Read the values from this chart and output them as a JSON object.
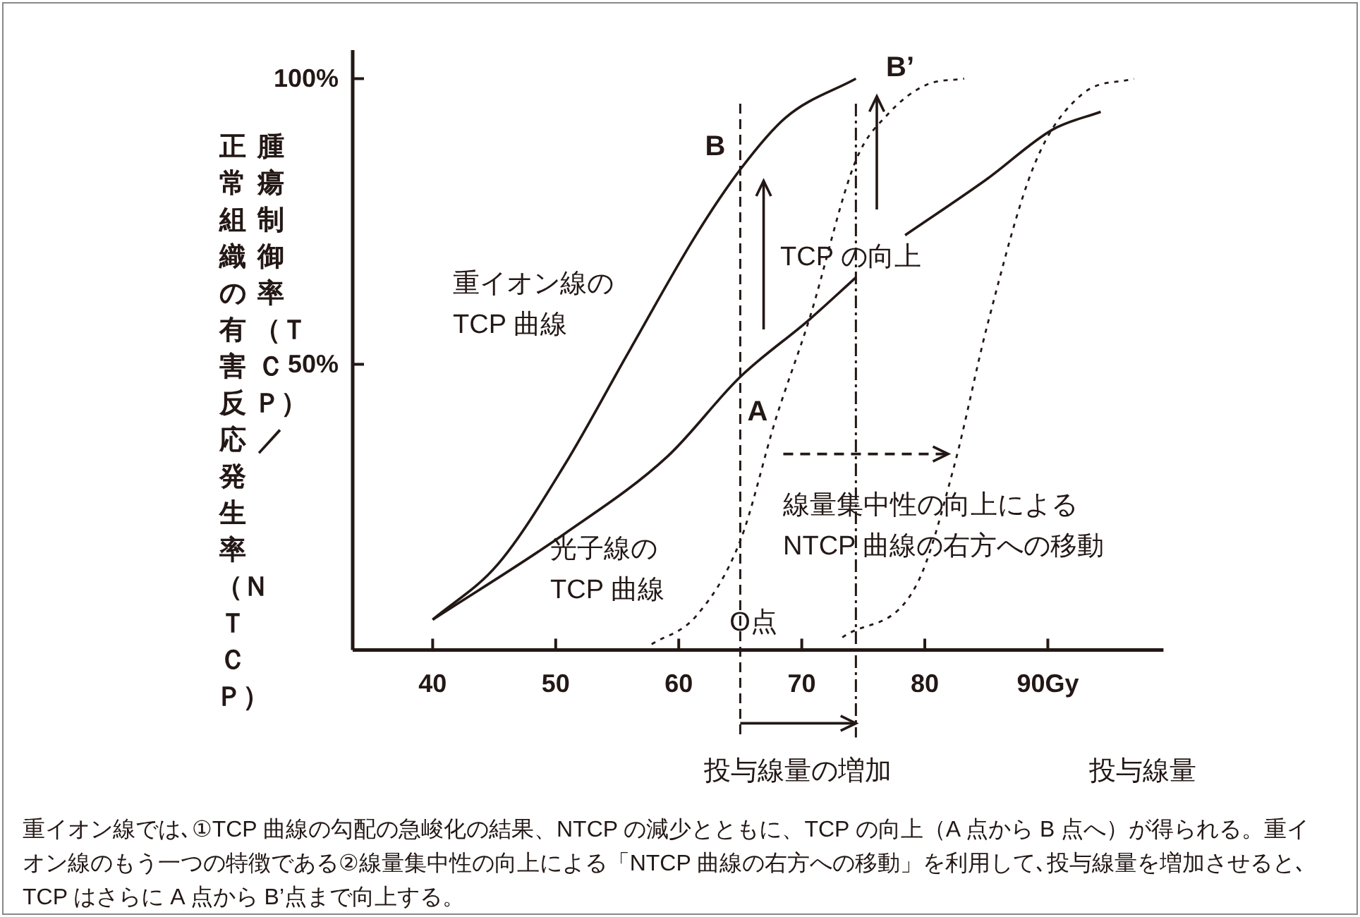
{
  "chart_data": {
    "type": "line",
    "xlabel": "投与線量",
    "ylabel": "腫瘍制御率（ＴＣＰ）／正常組織の有害反応発生率（ＮＴＣＰ）",
    "xlim": [
      33.5,
      99.4
    ],
    "ylim": [
      0,
      105
    ],
    "xticks": [
      40,
      50,
      60,
      70,
      80,
      {
        "value": 90,
        "label": "90Gy"
      }
    ],
    "yticks": [
      {
        "value": 50,
        "label": "50%"
      },
      {
        "value": 100,
        "label": "100%"
      }
    ],
    "series": [
      {
        "color": "#231815",
        "line_style": "solid",
        "x": [
          40,
          45.3,
          50.7,
          56.1,
          61.4,
          65.0,
          68.7,
          74.4
        ],
        "values": [
          5.3,
          15.0,
          32.3,
          52.8,
          72.6,
          84.1,
          93.2,
          100
        ]
      },
      {
        "color": "#231815",
        "line_style": "solid",
        "x": [
          40,
          50.7,
          59.1,
          65.0,
          70.6,
          74.4
        ],
        "values": [
          5.3,
          20.3,
          33.9,
          47.8,
          57.8,
          65.2
        ]
      },
      {
        "color": "#231815",
        "line_style": "solid",
        "x": [
          78.4,
          85.1,
          90.4,
          94.3
        ],
        "values": [
          72.6,
          82.5,
          91.1,
          94.2
        ]
      },
      {
        "color": "#231815",
        "line_style": "dotted",
        "x": [
          57.8,
          61.4,
          65.0,
          67.9,
          70.6,
          74.4,
          77.1,
          80.1,
          83.2
        ],
        "values": [
          1.0,
          5.9,
          19.1,
          40.5,
          57.8,
          85.7,
          94.0,
          98.9,
          100
        ]
      },
      {
        "color": "#231815",
        "line_style": "dotted",
        "x": [
          73.3,
          79.4,
          82.4,
          85.1,
          88.9,
          92.8,
          97.0
        ],
        "values": [
          2.2,
          11.7,
          32.3,
          57.0,
          84.9,
          97.3,
          100
        ]
      }
    ],
    "ref_lines": [
      {
        "axis": "x",
        "value": 65.0,
        "line_style": "dashed"
      },
      {
        "axis": "x",
        "value": 74.4,
        "line_style": "dashed"
      }
    ],
    "annotations": [
      "B",
      "B’",
      "A",
      "O点",
      "重イオン線の\nTCP 曲線",
      "光子線の\nTCP 曲線",
      "TCP の向上",
      "線量集中性の向上による\nNTCP 曲線の右方への移動",
      "投与線量の増加",
      "重イオン線では､①TCP 曲線の勾配の急峻化の結果、NTCP の減少とともに、TCP の向上（A 点から B 点へ）が得られる。重イオン線のもう一つの特徴である②線量集中性の向上による「NTCP 曲線の右方への移動」を利用して､投与線量を増加させると､TCP はさらに A 点から B’点まで向上する。"
    ],
    "grid": false
  }
}
